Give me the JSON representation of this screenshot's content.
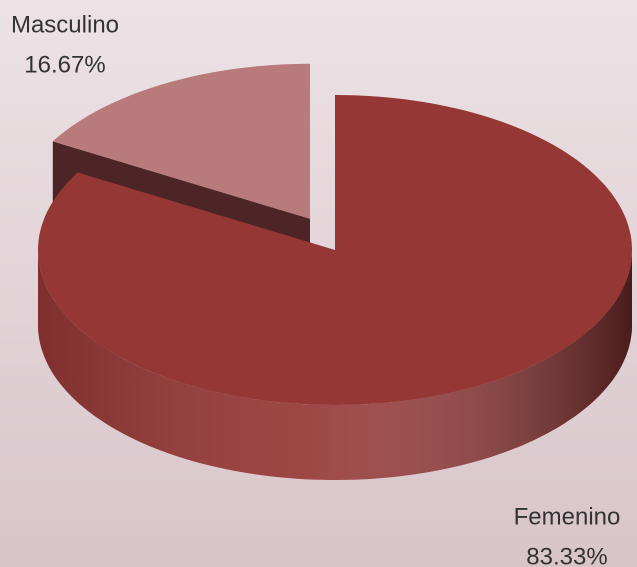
{
  "chart_data": {
    "type": "pie",
    "categories": [
      "Femenino",
      "Masculino"
    ],
    "values": [
      83.33,
      16.67
    ],
    "value_labels": [
      "83.33%",
      "16.67%"
    ],
    "colors": [
      "#953735",
      "#b87a7b"
    ]
  }
}
